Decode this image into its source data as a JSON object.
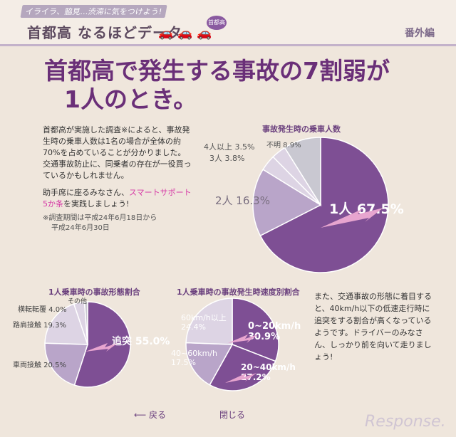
{
  "header": {
    "tagline": "イライラ、脇見…渋滞に気をつけよう!",
    "series_title": "首都高 なるほどデータ",
    "badge": "首都高",
    "section": "番外編"
  },
  "headline": [
    "首都高で発生する事故の7割弱が",
    "1人のとき。"
  ],
  "intro": {
    "paragraph1": "首都高が実施した調査※によると、事故発生時の乗車人数は1名の場合が全体の約70%を占めていることが分かりました。交通事故防止に、同乗者の存在が一役買っているかもしれません。",
    "p2_before": "助手席に座るみなさん、",
    "p2_highlight": "スマートサポート5か条",
    "p2_after": "を実践しましょう!",
    "note1": "※調査期間は平成24年6月18日から",
    "note2": "平成24年6月30日"
  },
  "right_text": "また、交通事故の形態に着目すると、40km/h以下の低速走行時に追突をする割合が高くなっているようです。ドライバーのみなさん、しっかり前を向いて走りましょう!",
  "nav": {
    "back": "戻る",
    "close": "閉じる"
  },
  "logo": "Response.",
  "colors": {
    "dark": "#7e4f94",
    "medium": "#b9a5c9",
    "light": "#ddd4e4",
    "grey": "#c9c8d1",
    "accent": "#e7a5cf",
    "title": "#6a3f7d"
  },
  "chart_data": [
    {
      "type": "pie",
      "title": "事故発生時の乗車人数",
      "slices": [
        {
          "label": "1人",
          "value": 67.5,
          "display": "1人 67.5%"
        },
        {
          "label": "2人",
          "value": 16.3,
          "display": "2人 16.3%"
        },
        {
          "label": "3人",
          "value": 3.8,
          "display": "3人 3.8%"
        },
        {
          "label": "4人以上",
          "value": 3.5,
          "display": "4人以上 3.5%"
        },
        {
          "label": "不明",
          "value": 8.9,
          "display": "不明 8.9%"
        }
      ]
    },
    {
      "type": "pie",
      "title": "1人乗車時の事故形態割合",
      "slices": [
        {
          "label": "追突",
          "value": 55.0,
          "display": "追突 55.0%"
        },
        {
          "label": "車両接触",
          "value": 20.5,
          "display": "車両接触 20.5%"
        },
        {
          "label": "路肩接触",
          "value": 19.3,
          "display": "路肩接触 19.3%"
        },
        {
          "label": "横転転覆",
          "value": 4.0,
          "display": "横転転覆 4.0%"
        },
        {
          "label": "その他",
          "value": 1.2,
          "display": "その他"
        }
      ]
    },
    {
      "type": "pie",
      "title": "1人乗車時の事故発生時速度別割合",
      "slices": [
        {
          "label": "0~20km/h",
          "value": 30.9,
          "display": "0~20km/h 30.9%"
        },
        {
          "label": "20~40km/h",
          "value": 27.2,
          "display": "20~40km/h 27.2%"
        },
        {
          "label": "40~60km/h",
          "value": 17.5,
          "display": "40~60km/h 17.5%"
        },
        {
          "label": "60km/h以上",
          "value": 24.4,
          "display": "60km/h以上 24.4%"
        }
      ]
    }
  ]
}
